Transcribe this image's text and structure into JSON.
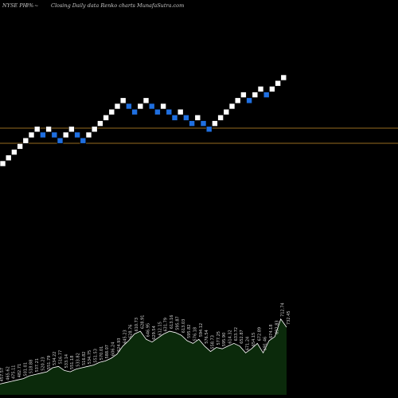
{
  "header": {
    "symbol": "NYSE PH",
    "change": "3%",
    "trend_icon": "~",
    "description": "Closing Daily data  Renko  charts MunafaSutra.com"
  },
  "colors": {
    "background": "#000000",
    "up_brick": "#ffffff",
    "down_brick": "#1f6fe0",
    "ref_line": "#c8922a",
    "volume_fill": "#0b2a0b",
    "volume_line": "#ffffff",
    "label_text": "#d0d0d0"
  },
  "chart_data": {
    "type": "renko",
    "bricks": [
      "up",
      "up",
      "up",
      "up",
      "up",
      "up",
      "up",
      "down",
      "up",
      "down",
      "down",
      "up",
      "up",
      "down",
      "down",
      "up",
      "up",
      "up",
      "up",
      "up",
      "up",
      "up",
      "down",
      "down",
      "up",
      "up",
      "down",
      "down",
      "up",
      "down",
      "down",
      "up",
      "down",
      "down",
      "up",
      "down",
      "down",
      "up",
      "up",
      "up",
      "up",
      "up",
      "up",
      "down",
      "up",
      "up",
      "down",
      "up",
      "up",
      "up"
    ],
    "price_labels": [
      "457.57",
      "465.62",
      "475.11",
      "482.71",
      "501.01",
      "518.88",
      "537.21",
      "520.23",
      "551.79",
      "534.22",
      "516.77",
      "533.14",
      "551.18",
      "533.82",
      "516.82",
      "534.75",
      "551.53",
      "570.01",
      "588.07",
      "606.24",
      "624.93",
      "645.23",
      "628.76",
      "610.73",
      "628.91",
      "646.95",
      "629.54",
      "612.15",
      "631.79",
      "613.16",
      "595.87",
      "613.03",
      "595.82",
      "576.18",
      "594.12",
      "576.54",
      "558.73",
      "577.25",
      "595.90",
      "614.32",
      "633.72",
      "652.87",
      "671.24",
      "654.15",
      "672.89",
      "691.46",
      "674.18",
      "692.83",
      "712.74",
      "732.45"
    ],
    "volume_levels": [
      0.08,
      0.09,
      0.1,
      0.11,
      0.12,
      0.14,
      0.15,
      0.16,
      0.17,
      0.2,
      0.21,
      0.18,
      0.17,
      0.19,
      0.2,
      0.21,
      0.22,
      0.24,
      0.25,
      0.27,
      0.3,
      0.36,
      0.4,
      0.45,
      0.47,
      0.41,
      0.39,
      0.42,
      0.45,
      0.47,
      0.46,
      0.44,
      0.4,
      0.38,
      0.41,
      0.36,
      0.32,
      0.35,
      0.34,
      0.36,
      0.38,
      0.36,
      0.31,
      0.34,
      0.38,
      0.31,
      0.4,
      0.43,
      0.56,
      0.5
    ],
    "ref_lines": [
      "upper",
      "lower"
    ]
  }
}
